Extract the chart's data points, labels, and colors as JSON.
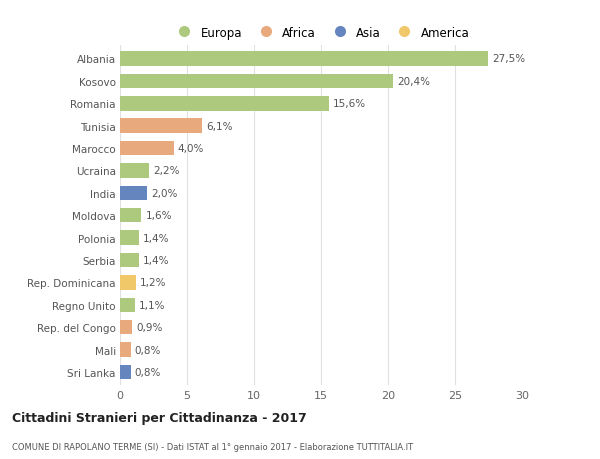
{
  "categories": [
    "Albania",
    "Kosovo",
    "Romania",
    "Tunisia",
    "Marocco",
    "Ucraina",
    "India",
    "Moldova",
    "Polonia",
    "Serbia",
    "Rep. Dominicana",
    "Regno Unito",
    "Rep. del Congo",
    "Mali",
    "Sri Lanka"
  ],
  "values": [
    27.5,
    20.4,
    15.6,
    6.1,
    4.0,
    2.2,
    2.0,
    1.6,
    1.4,
    1.4,
    1.2,
    1.1,
    0.9,
    0.8,
    0.8
  ],
  "labels": [
    "27,5%",
    "20,4%",
    "15,6%",
    "6,1%",
    "4,0%",
    "2,2%",
    "2,0%",
    "1,6%",
    "1,4%",
    "1,4%",
    "1,2%",
    "1,1%",
    "0,9%",
    "0,8%",
    "0,8%"
  ],
  "bar_colors": [
    "#adc97e",
    "#adc97e",
    "#adc97e",
    "#e8a97c",
    "#e8a97c",
    "#adc97e",
    "#6585be",
    "#adc97e",
    "#adc97e",
    "#adc97e",
    "#f0c86a",
    "#adc97e",
    "#e8a97c",
    "#e8a97c",
    "#6585be"
  ],
  "legend_labels": [
    "Europa",
    "Africa",
    "Asia",
    "America"
  ],
  "legend_colors": [
    "#adc97e",
    "#e8a97c",
    "#6585be",
    "#f0c86a"
  ],
  "title": "Cittadini Stranieri per Cittadinanza - 2017",
  "subtitle": "COMUNE DI RAPOLANO TERME (SI) - Dati ISTAT al 1° gennaio 2017 - Elaborazione TUTTITALIA.IT",
  "xlim": [
    0,
    30
  ],
  "xticks": [
    0,
    5,
    10,
    15,
    20,
    25,
    30
  ],
  "background_color": "#ffffff",
  "grid_color": "#e0e0e0",
  "bar_height": 0.65
}
